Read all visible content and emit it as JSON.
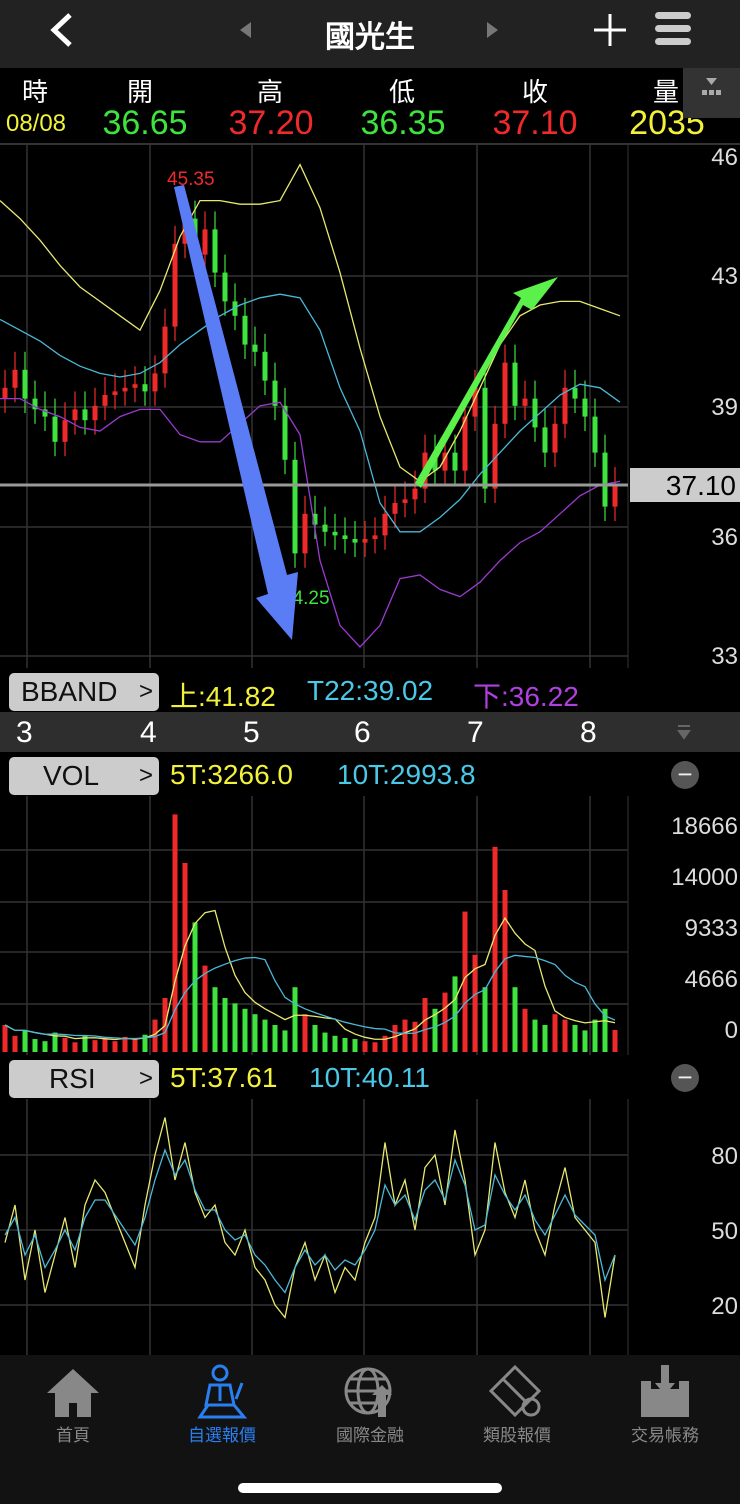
{
  "header": {
    "title": "國光生",
    "back_icon": "chevron-left-icon",
    "prev_icon": "triangle-left-icon",
    "next_icon": "triangle-right-icon",
    "add_icon": "plus-icon",
    "menu_icon": "hamburger-icon"
  },
  "quote": {
    "labels": [
      "時",
      "開",
      "高",
      "低",
      "收",
      "量"
    ],
    "date": "08/08",
    "open": "36.65",
    "high": "37.20",
    "low": "36.35",
    "close": "37.10",
    "volume": "2035",
    "colors": {
      "up": "#f02a2a",
      "down": "#3ee33e",
      "vol": "#f2f23a",
      "date": "#f2f23a"
    }
  },
  "main_chart": {
    "type": "candlestick",
    "y_ticks": [
      "46",
      "43",
      "39",
      "36",
      "33"
    ],
    "current_price": "37.10",
    "high_label": "45.35",
    "low_label": "34.25",
    "closes": [
      39.8,
      40.3,
      39.5,
      39.2,
      39.0,
      38.3,
      38.9,
      39.2,
      38.9,
      39.3,
      39.6,
      39.7,
      39.8,
      39.9,
      39.7,
      40.2,
      41.5,
      43.8,
      44.5,
      43.5,
      44.2,
      43.0,
      42.2,
      41.8,
      41.0,
      40.8,
      40.0,
      39.3,
      37.8,
      35.2,
      36.3,
      36.0,
      35.8,
      35.7,
      35.6,
      35.5,
      35.6,
      35.7,
      36.3,
      36.6,
      36.7,
      37.0,
      38.0,
      37.5,
      38.0,
      37.5,
      39.0,
      39.8,
      37.0,
      38.8,
      40.5,
      39.3,
      39.5,
      38.7,
      38.0,
      38.8,
      39.8,
      39.5,
      39.0,
      38.0,
      36.5,
      37.1
    ],
    "bband_upper": [
      45.0,
      44.5,
      43.9,
      43.2,
      42.6,
      42.2,
      41.8,
      41.4,
      42.5,
      44.0,
      45.0,
      45.0,
      44.9,
      44.9,
      45.0,
      46.0,
      44.8,
      43.0,
      40.9,
      39.0,
      37.6,
      37.2,
      37.6,
      38.6,
      39.8,
      41.0,
      41.8,
      42.1,
      42.2,
      42.2,
      42.0,
      41.8
    ],
    "bband_mid": [
      41.7,
      41.4,
      41.1,
      40.7,
      40.4,
      40.2,
      40.1,
      40.2,
      40.5,
      41.0,
      41.4,
      41.8,
      42.1,
      42.3,
      42.4,
      42.3,
      41.4,
      39.8,
      38.6,
      36.6,
      35.8,
      35.8,
      36.2,
      36.7,
      37.4,
      38.0,
      38.6,
      39.1,
      39.6,
      39.9,
      39.8,
      39.4
    ],
    "bband_lower": [
      39.5,
      39.5,
      39.2,
      39.0,
      38.7,
      38.6,
      39.0,
      39.2,
      39.2,
      38.5,
      38.3,
      38.3,
      38.8,
      39.3,
      39.4,
      38.5,
      35.0,
      33.2,
      32.6,
      33.2,
      34.5,
      34.6,
      34.2,
      34.0,
      34.4,
      35.0,
      35.5,
      35.8,
      36.3,
      36.8,
      37.1,
      37.2
    ],
    "colors": {
      "upper": "#e8e870",
      "mid": "#4ab8d8",
      "lower": "#9a3ad0",
      "down_arrow": "#5a7cf5",
      "up_arrow": "#5cf04a"
    }
  },
  "bband": {
    "button": "BBAND",
    "upper": "上:41.82",
    "mid": "T22:39.02",
    "lower": "下:36.22"
  },
  "x_axis": {
    "ticks": [
      "3",
      "4",
      "5",
      "6",
      "7",
      "8"
    ]
  },
  "vol": {
    "button": "VOL",
    "ma5": "5T:3266.0",
    "ma10": "10T:2993.8",
    "y_ticks": [
      "18666",
      "14000",
      "9333",
      "4666",
      "0"
    ],
    "values": [
      2500,
      1500,
      2000,
      1200,
      1000,
      1800,
      1300,
      900,
      1500,
      1100,
      1300,
      1000,
      1400,
      1200,
      1600,
      3000,
      5000,
      22000,
      17500,
      12000,
      8000,
      6000,
      5000,
      4500,
      4000,
      3500,
      3000,
      2500,
      2000,
      6000,
      3500,
      2500,
      1800,
      1500,
      1300,
      1200,
      1000,
      900,
      1500,
      2500,
      3000,
      2800,
      5000,
      4000,
      5500,
      7000,
      13000,
      9000,
      6000,
      19000,
      15000,
      6000,
      4000,
      3000,
      2500,
      3500,
      3000,
      2500,
      2000,
      3000,
      4000,
      2035
    ]
  },
  "rsi": {
    "button": "RSI",
    "ma5": "5T:37.61",
    "ma10": "10T:40.11",
    "y_ticks": [
      "80",
      "50",
      "20"
    ],
    "rsi5": [
      45,
      60,
      30,
      50,
      25,
      40,
      55,
      35,
      60,
      70,
      65,
      55,
      45,
      35,
      60,
      80,
      95,
      70,
      85,
      65,
      55,
      60,
      45,
      40,
      50,
      35,
      30,
      20,
      15,
      35,
      45,
      30,
      40,
      25,
      35,
      30,
      45,
      55,
      85,
      60,
      70,
      50,
      75,
      80,
      60,
      90,
      70,
      40,
      50,
      85,
      65,
      55,
      70,
      50,
      40,
      60,
      75,
      55,
      50,
      45,
      15,
      40
    ],
    "rsi10": [
      48,
      55,
      40,
      48,
      35,
      42,
      50,
      42,
      55,
      62,
      62,
      56,
      50,
      44,
      55,
      70,
      82,
      72,
      78,
      66,
      58,
      58,
      50,
      46,
      48,
      40,
      36,
      30,
      25,
      35,
      42,
      36,
      40,
      34,
      38,
      36,
      42,
      50,
      68,
      60,
      64,
      54,
      66,
      70,
      62,
      78,
      68,
      50,
      52,
      72,
      64,
      58,
      64,
      54,
      48,
      56,
      64,
      56,
      52,
      48,
      30,
      40
    ],
    "colors": {
      "rsi5": "#e8e870",
      "rsi10": "#4ab8d8"
    }
  },
  "tabs": [
    {
      "label": "首頁",
      "icon": "home-icon"
    },
    {
      "label": "自選報價",
      "icon": "person-desk-icon",
      "active": true
    },
    {
      "label": "國際金融",
      "icon": "globe-icon"
    },
    {
      "label": "類股報價",
      "icon": "film-dollar-icon"
    },
    {
      "label": "交易帳務",
      "icon": "inbox-download-icon"
    }
  ]
}
